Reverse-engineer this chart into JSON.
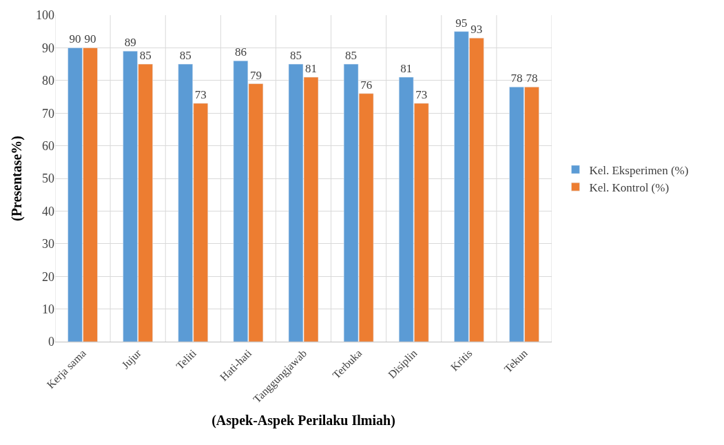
{
  "chart_data": {
    "type": "bar",
    "xlabel": "(Aspek-Aspek Perilaku Ilmiah)",
    "ylabel": "(Presentase%)",
    "categories": [
      "Kerja sama",
      "Jujur",
      "Teliti",
      "Hati-hati",
      "Tanggungjawab",
      "Terbuka",
      "Disiplin",
      "Kritis",
      "Tekun"
    ],
    "series": [
      {
        "name": "Kel. Eksperimen (%)",
        "color": "#5b9bd5",
        "values": [
          90,
          89,
          85,
          86,
          85,
          85,
          81,
          95,
          78
        ]
      },
      {
        "name": "Kel. Kontrol (%)",
        "color": "#ed7d31",
        "values": [
          90,
          85,
          73,
          79,
          81,
          76,
          73,
          93,
          78
        ]
      }
    ],
    "ylim": [
      0,
      100
    ],
    "yticks": [
      0,
      10,
      20,
      30,
      40,
      50,
      60,
      70,
      80,
      90,
      100
    ],
    "grid": true,
    "legend": "right",
    "data_labels": true
  }
}
